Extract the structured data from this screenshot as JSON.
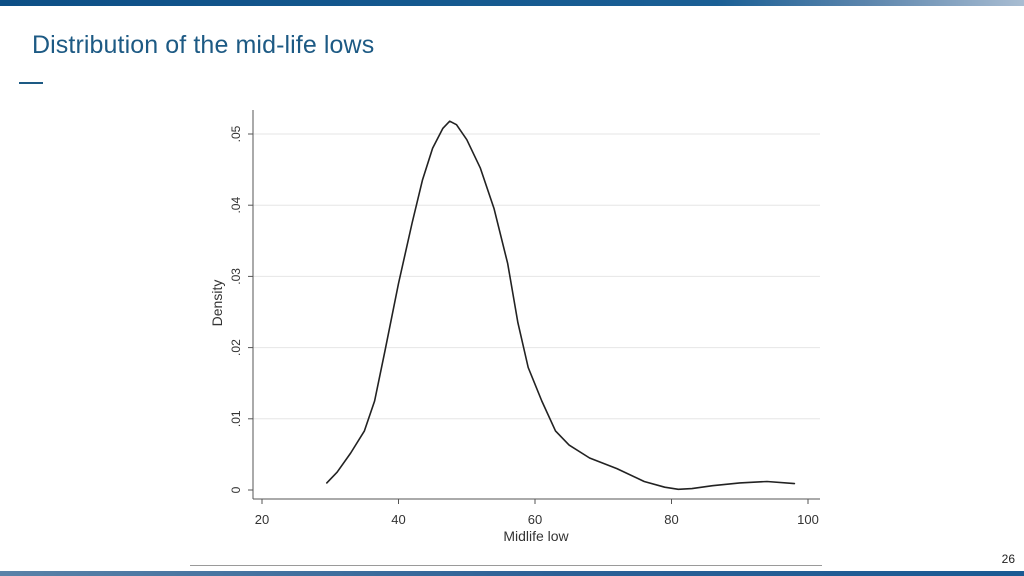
{
  "slide": {
    "title": "Distribution of the mid-life lows",
    "page_number": "26"
  },
  "colors": {
    "title": "#1d5a84",
    "top_band": "#0d4f86",
    "bottom_band": "#2b6096",
    "curve": "#222222",
    "gridline": "#e6e6e6"
  },
  "chart_data": {
    "type": "line",
    "title": "",
    "xlabel": "Midlife low",
    "ylabel": "Density",
    "xlim": [
      20,
      100
    ],
    "ylim": [
      0,
      0.05
    ],
    "x_ticks": [
      20,
      40,
      60,
      80,
      100
    ],
    "x_tick_labels": [
      "20",
      "40",
      "60",
      "80",
      "100"
    ],
    "y_ticks": [
      0,
      0.01,
      0.02,
      0.03,
      0.04,
      0.05
    ],
    "y_tick_labels": [
      "0",
      ".01",
      ".02",
      ".03",
      ".04",
      ".05"
    ],
    "grid": true,
    "legend": "none",
    "series": [
      {
        "x": [
          29.5,
          31,
          33,
          35,
          36.5,
          38,
          40,
          42,
          43.5,
          45,
          46.5,
          47.5,
          48.5,
          50,
          52,
          54,
          56,
          57.5,
          59,
          61,
          63,
          65,
          68,
          72,
          76,
          79,
          81,
          83,
          86,
          90,
          94,
          98
        ],
        "y": [
          0.001,
          0.0025,
          0.0052,
          0.0083,
          0.0125,
          0.0195,
          0.029,
          0.0375,
          0.0435,
          0.048,
          0.0508,
          0.0518,
          0.0513,
          0.0492,
          0.0452,
          0.0395,
          0.0318,
          0.0235,
          0.0172,
          0.0125,
          0.0083,
          0.0063,
          0.0045,
          0.003,
          0.0012,
          0.0004,
          0.0001,
          0.0002,
          0.0006,
          0.001,
          0.0012,
          0.0009
        ]
      }
    ]
  }
}
